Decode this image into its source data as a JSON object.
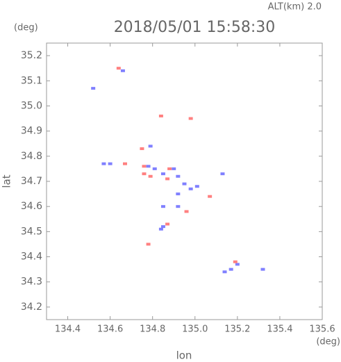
{
  "chart_data": {
    "type": "scatter",
    "title": "2018/05/01 15:58:30",
    "subtitle": "ALT(km) 2.0",
    "x_label": "lon",
    "y_label": "lat",
    "x_unit": "(deg)",
    "y_unit": "(deg)",
    "xlim": [
      134.3,
      135.6
    ],
    "xticks": [
      134.4,
      134.6,
      134.8,
      {
        "value": 135,
        "label": "135.0"
      },
      135.2,
      135.4,
      135.6
    ],
    "ylim": [
      34.15,
      35.25
    ],
    "yticks": [
      34.2,
      34.3,
      34.4,
      34.5,
      34.6,
      34.7,
      34.8,
      34.9,
      {
        "value": 35,
        "label": "35.0"
      },
      35.1,
      35.2
    ],
    "series": [
      {
        "color": "#8080ff",
        "x": [
          134.57,
          134.6,
          134.78,
          134.81,
          134.85,
          134.9,
          134.92,
          134.95,
          134.98,
          134.85,
          134.84,
          134.92,
          135.14,
          135.17,
          135.2,
          135.32,
          134.85,
          135.13,
          134.79,
          134.66,
          134.52,
          135.01,
          134.92
        ],
        "values": [
          34.77,
          34.77,
          34.76,
          34.75,
          34.73,
          34.75,
          34.72,
          34.69,
          34.67,
          34.52,
          34.51,
          34.6,
          34.34,
          34.35,
          34.37,
          34.35,
          34.6,
          34.73,
          34.84,
          35.14,
          35.07,
          34.68,
          34.65
        ]
      },
      {
        "color": "#ff8080",
        "x": [
          134.75,
          134.76,
          134.79,
          134.87,
          134.87,
          134.98,
          135.19,
          134.78,
          134.67,
          134.84,
          134.96,
          135.07,
          134.64,
          134.88,
          134.76
        ],
        "values": [
          34.83,
          34.76,
          34.72,
          34.71,
          34.53,
          34.95,
          34.38,
          34.45,
          34.77,
          34.96,
          34.58,
          34.64,
          35.15,
          34.75,
          34.73
        ]
      }
    ]
  }
}
